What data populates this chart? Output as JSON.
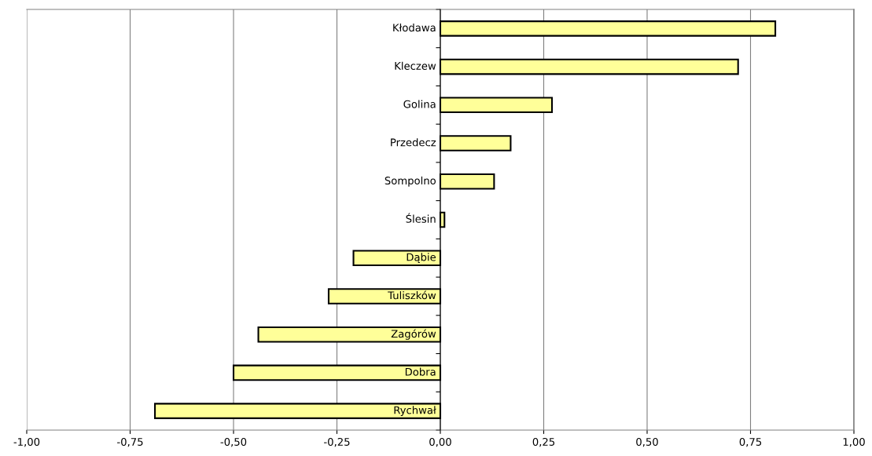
{
  "chart_data": {
    "type": "bar",
    "orientation": "horizontal",
    "categories": [
      "Kłodawa",
      "Kleczew",
      "Golina",
      "Przedecz",
      "Sompolno",
      "Ślesin",
      "Dąbie",
      "Tuliszków",
      "Zagórów",
      "Dobra",
      "Rychwał"
    ],
    "values": [
      0.81,
      0.72,
      0.27,
      0.17,
      0.13,
      0.01,
      -0.21,
      -0.27,
      -0.44,
      -0.5,
      -0.69
    ],
    "color": "#ffff99",
    "xlim": [
      -1,
      1
    ],
    "xticks": [
      {
        "value": -1,
        "label": "-1,00"
      },
      {
        "value": -0.75,
        "label": "-0,75"
      },
      {
        "value": -0.5,
        "label": "-0,50"
      },
      {
        "value": -0.25,
        "label": "-0,25"
      },
      {
        "value": 0,
        "label": "0,00"
      },
      {
        "value": 0.25,
        "label": "0,25"
      },
      {
        "value": 0.5,
        "label": "0,50"
      },
      {
        "value": 0.75,
        "label": "0,75"
      },
      {
        "value": 1,
        "label": "1,00"
      }
    ],
    "grid": "x",
    "legend": false
  }
}
